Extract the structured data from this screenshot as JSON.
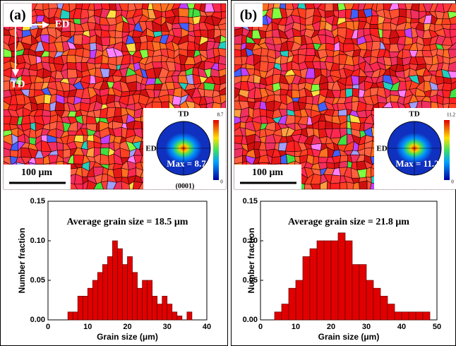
{
  "chart_data": [
    {
      "type": "histogram",
      "panel_label": "(a)",
      "map": {
        "axis_labels": [
          "ED",
          "TD"
        ],
        "scale_bar": "100 μm",
        "pole_figure": {
          "top": "TD",
          "left": "ED",
          "max": "Max = 8.7",
          "plane": "(0001)",
          "bar_max": "8.7",
          "bar_min": "0"
        }
      },
      "title": "Average grain size = 18.5 μm",
      "x_label": "Grain size (μm)",
      "y_label": "Number fraction",
      "bins": [
        5,
        6.25,
        7.5,
        8.75,
        10,
        11.25,
        12.5,
        13.75,
        15,
        16.25,
        17.5,
        18.75,
        20,
        21.25,
        22.5,
        23.75,
        25,
        26.25,
        27.5,
        28.75,
        30,
        31.25,
        32.5,
        33.75,
        35,
        36.25
      ],
      "values": [
        0.01,
        0.01,
        0.03,
        0.03,
        0.04,
        0.05,
        0.06,
        0.07,
        0.08,
        0.1,
        0.09,
        0.07,
        0.08,
        0.06,
        0.04,
        0.05,
        0.05,
        0.03,
        0.02,
        0.03,
        0.02,
        0.01,
        0.005,
        0,
        0.01
      ],
      "color": "#e00000",
      "xlim": [
        0,
        40
      ],
      "xticks": [
        0,
        10,
        20,
        30,
        40
      ],
      "ylim": [
        0,
        0.15
      ],
      "yticks": [
        {
          "value": 0,
          "label": "0.00"
        },
        {
          "value": 0.05,
          "label": "0.05"
        },
        {
          "value": 0.1,
          "label": "0.10"
        },
        {
          "value": 0.15,
          "label": "0.15"
        }
      ]
    },
    {
      "type": "histogram",
      "panel_label": "(b)",
      "map": {
        "scale_bar": "100 μm",
        "pole_figure": {
          "top": "TD",
          "left": "ED",
          "max": "Max = 11.2",
          "bar_max": "11.2",
          "bar_min": "0"
        }
      },
      "title": "Average grain size = 21.8 μm",
      "x_label": "Grain size (μm)",
      "y_label": "Number fraction",
      "bins": [
        4,
        6,
        8,
        10,
        12,
        14,
        16,
        18,
        20,
        22,
        24,
        26,
        28,
        30,
        32,
        34,
        36,
        38,
        40,
        42,
        44,
        46,
        48
      ],
      "values": [
        0.01,
        0.02,
        0.04,
        0.05,
        0.08,
        0.09,
        0.1,
        0.1,
        0.1,
        0.11,
        0.1,
        0.07,
        0.07,
        0.05,
        0.04,
        0.03,
        0.02,
        0.01,
        0.01,
        0.01,
        0.01,
        0.01
      ],
      "color": "#e00000",
      "xlim": [
        0,
        50
      ],
      "xticks": [
        0,
        10,
        20,
        30,
        40,
        50
      ],
      "ylim": [
        0,
        0.15
      ],
      "yticks": [
        {
          "value": 0,
          "label": "0.00"
        },
        {
          "value": 0.05,
          "label": "0.05"
        },
        {
          "value": 0.1,
          "label": "0.10"
        },
        {
          "value": 0.15,
          "label": "0.15"
        }
      ]
    }
  ]
}
